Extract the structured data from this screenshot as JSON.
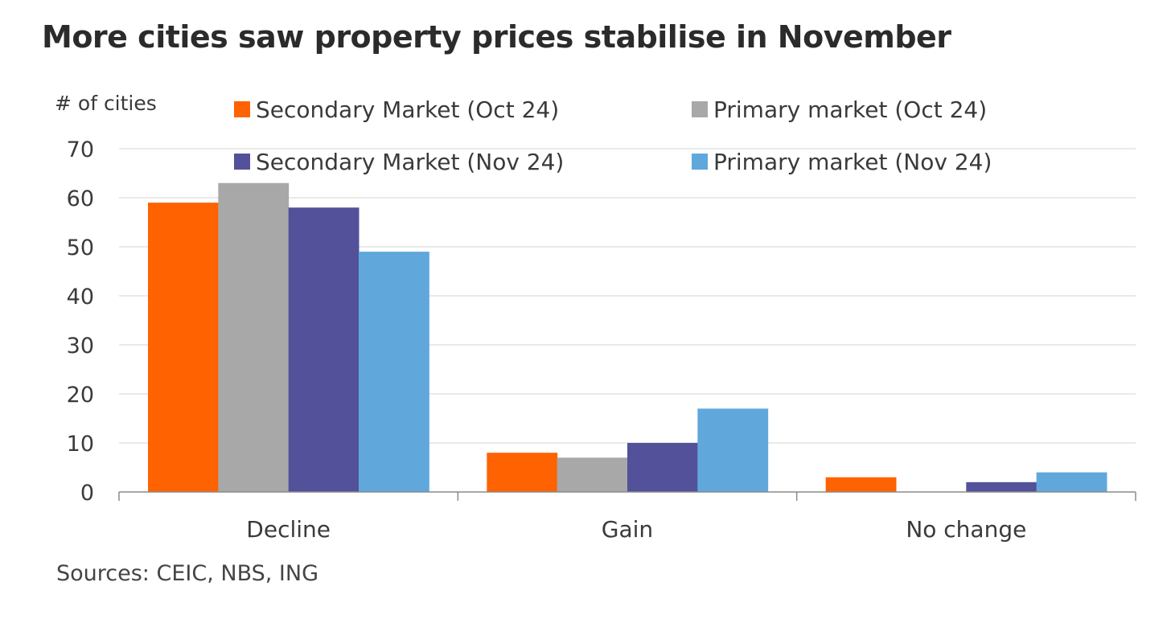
{
  "title": "More cities saw property prices stabilise in November",
  "source": "Sources: CEIC, NBS, ING",
  "chart_data": {
    "type": "bar",
    "title": "More cities saw property prices stabilise in November",
    "ylabel": "# of cities",
    "xlabel": "",
    "ylim": [
      0,
      70
    ],
    "yticks": [
      0,
      10,
      20,
      30,
      40,
      50,
      60,
      70
    ],
    "grid": true,
    "legend_position": "top",
    "categories": [
      "Decline",
      "Gain",
      "No change"
    ],
    "series": [
      {
        "name": "Secondary Market (Oct 24)",
        "color": "#ff6200",
        "values": [
          59,
          8,
          3
        ]
      },
      {
        "name": "Primary market (Oct 24)",
        "color": "#a8a8a8",
        "values": [
          63,
          7,
          0
        ]
      },
      {
        "name": "Secondary Market (Nov 24)",
        "color": "#525199",
        "values": [
          58,
          10,
          2
        ]
      },
      {
        "name": "Primary market (Nov 24)",
        "color": "#60a8dc",
        "values": [
          49,
          17,
          4
        ]
      }
    ]
  }
}
